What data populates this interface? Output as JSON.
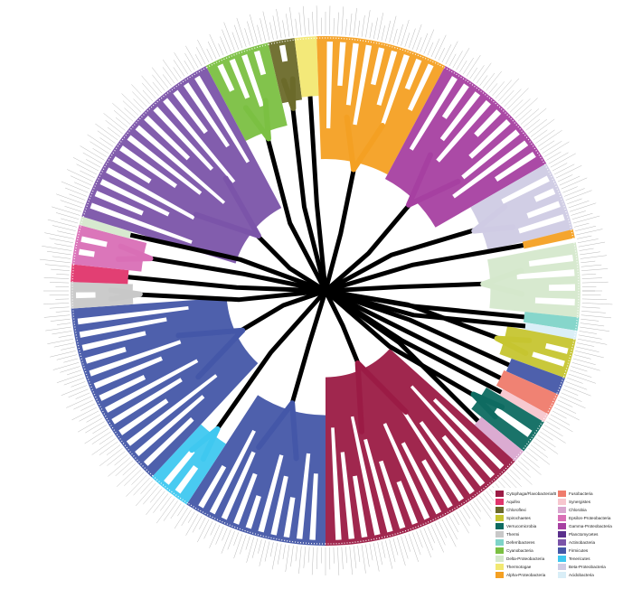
{
  "legend": [
    {
      "label": "Cytophaga/Flavobacteria/Bacteroidetes",
      "color": "#9b1b45"
    },
    {
      "label": "Aquifex",
      "color": "#e0356c"
    },
    {
      "label": "Chloroflexi",
      "color": "#6b6a2a"
    },
    {
      "label": "Spirochaetes",
      "color": "#c6c530"
    },
    {
      "label": "Verrucomicrobia",
      "color": "#0e6b61"
    },
    {
      "label": "Thermi",
      "color": "#c8c8c8"
    },
    {
      "label": "Deferribacteres",
      "color": "#7fd4c8"
    },
    {
      "label": "Cyanobacteria",
      "color": "#7bc042"
    },
    {
      "label": "Delta-Proteobacteria",
      "color": "#d5e8cc"
    },
    {
      "label": "Thermotogae",
      "color": "#f2e872"
    },
    {
      "label": "Alpha-Proteobacteria",
      "color": "#f4a023"
    },
    {
      "label": "Fusobacteria",
      "color": "#ef7b6c"
    },
    {
      "label": "Synergistes",
      "color": "#f7c6ce"
    },
    {
      "label": "Chlorobia",
      "color": "#d9a6cf"
    },
    {
      "label": "Epsilon-Proteobacteria",
      "color": "#d96fb6"
    },
    {
      "label": "Gamma-Proteobacteria",
      "color": "#a640a1"
    },
    {
      "label": "Planctomycetes",
      "color": "#5a2f8c"
    },
    {
      "label": "Actinobacteria",
      "color": "#7b54a9"
    },
    {
      "label": "Firmicutes",
      "color": "#4457a8"
    },
    {
      "label": "Tenericutes",
      "color": "#3fc8f0"
    },
    {
      "label": "Beta-Proteobacteria",
      "color": "#cfcbe4"
    },
    {
      "label": "Acidobacteria",
      "color": "#d9eef7"
    }
  ],
  "clades": [
    {
      "name": "Cyanobacteria",
      "color": "#7bc042",
      "start": -118,
      "end": -103
    },
    {
      "name": "Chloroflexi",
      "color": "#6b6a2a",
      "start": -103,
      "end": -97
    },
    {
      "name": "Thermotogae",
      "color": "#f2e872",
      "start": -97,
      "end": -92
    },
    {
      "name": "Alpha-Proteobacteria",
      "color": "#f4a023",
      "start": -92,
      "end": -62
    },
    {
      "name": "Gamma-Proteobacteria",
      "color": "#a640a1",
      "start": -62,
      "end": -30
    },
    {
      "name": "Beta-Proteobacteria",
      "color": "#cfcbe4",
      "start": -30,
      "end": -14
    },
    {
      "name": "Alpha-Proteobacteria",
      "color": "#f4a023",
      "start": -14,
      "end": -12
    },
    {
      "name": "Delta-Proteobacteria",
      "color": "#d5e8cc",
      "start": -11,
      "end": 6
    },
    {
      "name": "Deferribacteres",
      "color": "#7fd4c8",
      "start": 6,
      "end": 9
    },
    {
      "name": "Acidobacteria",
      "color": "#d9eef7",
      "start": 9,
      "end": 11
    },
    {
      "name": "Spirochaetes",
      "color": "#c6c530",
      "start": 11,
      "end": 20
    },
    {
      "name": "Firmicutes",
      "color": "#4457a8",
      "start": 20,
      "end": 24
    },
    {
      "name": "Fusobacteria",
      "color": "#ef7b6c",
      "start": 24,
      "end": 29
    },
    {
      "name": "Synergistes",
      "color": "#f7c6ce",
      "start": 29,
      "end": 31
    },
    {
      "name": "Verrucomicrobia",
      "color": "#0e6b61",
      "start": 31,
      "end": 39
    },
    {
      "name": "Chlorobia",
      "color": "#d9a6cf",
      "start": 39,
      "end": 42
    },
    {
      "name": "Cytophaga/Flavobacteria/Bacteroidetes",
      "color": "#9b1b45",
      "start": 42,
      "end": 90
    },
    {
      "name": "Firmicutes",
      "color": "#4457a8",
      "start": 90,
      "end": 123
    },
    {
      "name": "Tenericutes",
      "color": "#3fc8f0",
      "start": 123,
      "end": 133
    },
    {
      "name": "Firmicutes",
      "color": "#4457a8",
      "start": 133,
      "end": 176
    },
    {
      "name": "Thermi",
      "color": "#c8c8c8",
      "start": 176,
      "end": 182
    },
    {
      "name": "Aquifex",
      "color": "#e0356c",
      "start": 182,
      "end": 186
    },
    {
      "name": "Epsilon-Proteobacteria",
      "color": "#d96fb6",
      "start": 186,
      "end": 195
    },
    {
      "name": "Delta-Proteobacteria",
      "color": "#d5e8cc",
      "start": 195,
      "end": 197
    },
    {
      "name": "Actinobacteria",
      "color": "#7b54a9",
      "start": 197,
      "end": 242
    }
  ]
}
